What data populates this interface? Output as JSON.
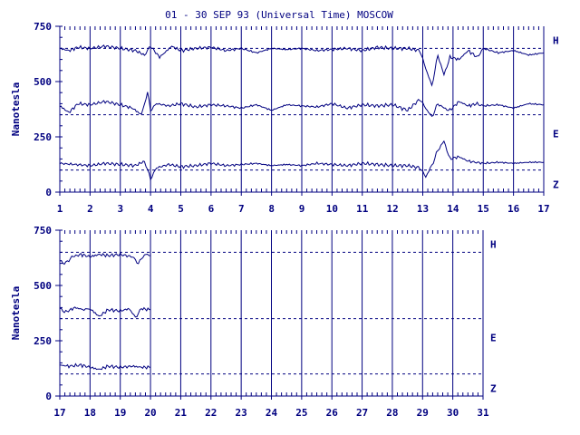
{
  "title": "01 - 30 SEP 93 (Universal Time) MOSCOW",
  "colors": {
    "ink": "#000080",
    "background": "#ffffff"
  },
  "chart_data": [
    {
      "type": "line",
      "ylabel": "Nanotesla",
      "xlim": [
        1,
        17
      ],
      "ylim": [
        0,
        750
      ],
      "yticks": [
        0,
        250,
        500,
        750
      ],
      "xticks": [
        1,
        2,
        3,
        4,
        5,
        6,
        7,
        8,
        9,
        10,
        11,
        12,
        13,
        14,
        15,
        16,
        17
      ],
      "grid": "vertical-day-lines",
      "baselines": [
        {
          "name": "H",
          "value": 650
        },
        {
          "name": "E",
          "value": 350
        },
        {
          "name": "Z",
          "value": 100
        }
      ],
      "series": [
        {
          "name": "H",
          "x": [
            1,
            1.3,
            1.6,
            2,
            2.5,
            3,
            3.5,
            3.8,
            4,
            4.3,
            4.7,
            5,
            5.5,
            6,
            6.5,
            7,
            7.5,
            8,
            8.5,
            9,
            9.5,
            10,
            10.5,
            11,
            11.5,
            12,
            12.5,
            12.9,
            13.1,
            13.3,
            13.5,
            13.7,
            13.9,
            14.2,
            14.5,
            14.8,
            15,
            15.5,
            16,
            16.5,
            17
          ],
          "y": [
            650,
            640,
            655,
            650,
            660,
            650,
            640,
            620,
            660,
            610,
            660,
            640,
            650,
            655,
            640,
            650,
            630,
            650,
            645,
            650,
            640,
            645,
            650,
            640,
            655,
            650,
            650,
            640,
            560,
            480,
            620,
            530,
            610,
            600,
            640,
            610,
            650,
            630,
            640,
            620,
            630
          ]
        },
        {
          "name": "E",
          "x": [
            1,
            1.3,
            1.6,
            2,
            2.5,
            3,
            3.4,
            3.7,
            3.9,
            4,
            4.2,
            4.6,
            5,
            5.5,
            6,
            6.5,
            7,
            7.5,
            8,
            8.5,
            9,
            9.5,
            10,
            10.5,
            11,
            11.5,
            12,
            12.5,
            12.9,
            13.1,
            13.3,
            13.5,
            13.7,
            13.9,
            14.2,
            14.5,
            14.8,
            15,
            15.5,
            16,
            16.5,
            17
          ],
          "y": [
            390,
            360,
            400,
            395,
            410,
            395,
            380,
            350,
            450,
            370,
            400,
            390,
            400,
            385,
            395,
            390,
            380,
            395,
            370,
            395,
            390,
            385,
            400,
            380,
            395,
            390,
            395,
            370,
            420,
            380,
            340,
            400,
            380,
            370,
            410,
            390,
            400,
            390,
            395,
            380,
            400,
            395
          ]
        },
        {
          "name": "Z",
          "x": [
            1,
            1.5,
            2,
            2.5,
            3,
            3.5,
            3.8,
            4,
            4.2,
            4.6,
            5,
            5.5,
            6,
            6.5,
            7,
            7.5,
            8,
            8.5,
            9,
            9.5,
            10,
            10.5,
            11,
            11.5,
            12,
            12.5,
            12.9,
            13.1,
            13.3,
            13.5,
            13.7,
            13.9,
            14.2,
            14.5,
            15,
            15.5,
            16,
            16.5,
            17
          ],
          "y": [
            130,
            125,
            120,
            130,
            125,
            120,
            140,
            60,
            110,
            125,
            115,
            120,
            130,
            120,
            125,
            130,
            120,
            125,
            120,
            130,
            125,
            120,
            130,
            125,
            120,
            120,
            110,
            70,
            120,
            190,
            230,
            150,
            160,
            140,
            130,
            135,
            130,
            135,
            135
          ]
        }
      ],
      "component_labels": [
        "H",
        "E",
        "Z"
      ]
    },
    {
      "type": "line",
      "ylabel": "Nanotesla",
      "xlim": [
        17,
        31
      ],
      "ylim": [
        0,
        750
      ],
      "yticks": [
        0,
        250,
        500,
        750
      ],
      "xticks": [
        17,
        18,
        19,
        20,
        21,
        22,
        23,
        24,
        25,
        26,
        27,
        28,
        29,
        30,
        31
      ],
      "grid": "vertical-day-lines",
      "baselines": [
        {
          "name": "H",
          "value": 650
        },
        {
          "name": "E",
          "value": 350
        },
        {
          "name": "Z",
          "value": 100
        }
      ],
      "series": [
        {
          "name": "H",
          "x": [
            17,
            17.2,
            17.4,
            17.7,
            18,
            18.3,
            18.6,
            19,
            19.4,
            19.6,
            19.8,
            20
          ],
          "y": [
            610,
            600,
            630,
            640,
            630,
            640,
            635,
            640,
            630,
            600,
            640,
            635
          ]
        },
        {
          "name": "E",
          "x": [
            17,
            17.2,
            17.5,
            17.8,
            18,
            18.3,
            18.6,
            19,
            19.3,
            19.5,
            19.7,
            20
          ],
          "y": [
            395,
            380,
            400,
            390,
            395,
            360,
            390,
            385,
            395,
            355,
            395,
            390
          ]
        },
        {
          "name": "Z",
          "x": [
            17,
            17.3,
            17.7,
            18,
            18.3,
            18.6,
            19,
            19.4,
            19.7,
            20
          ],
          "y": [
            140,
            135,
            140,
            130,
            120,
            135,
            130,
            135,
            130,
            130
          ]
        }
      ],
      "component_labels": [
        "H",
        "E",
        "Z"
      ]
    }
  ]
}
